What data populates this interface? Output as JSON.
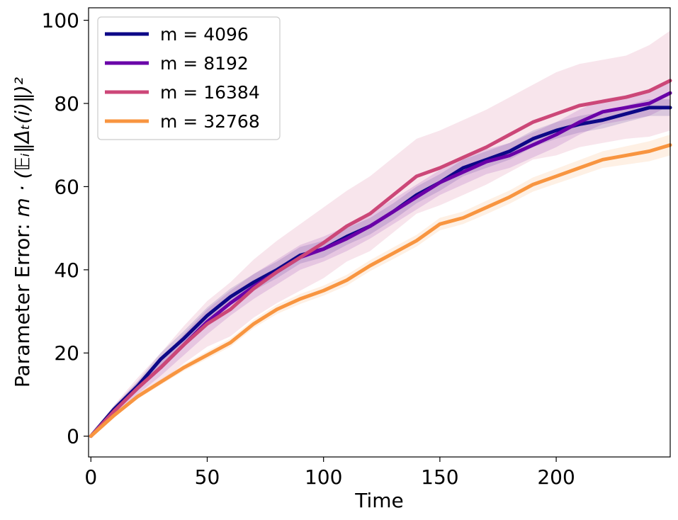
{
  "chart_data": {
    "type": "line",
    "title": "",
    "xlabel": "Time",
    "ylabel_prefix": "Parameter Error: ",
    "ylabel_math": "m · (𝔼ᵢ‖Δₜ(i)‖)²",
    "xlim": [
      -1,
      249
    ],
    "ylim": [
      -5,
      103
    ],
    "xticks": [
      0,
      50,
      100,
      150,
      200
    ],
    "yticks": [
      0,
      20,
      40,
      60,
      80,
      100
    ],
    "grid": false,
    "legend_position": "top-left",
    "x": [
      0,
      10,
      20,
      30,
      40,
      50,
      60,
      70,
      80,
      90,
      100,
      110,
      120,
      130,
      140,
      150,
      160,
      170,
      180,
      190,
      200,
      210,
      220,
      230,
      240,
      249
    ],
    "series": [
      {
        "name": "m = 4096",
        "color": "#0d0887",
        "values": [
          0,
          6.5,
          12,
          18.5,
          23.5,
          29,
          33.5,
          37,
          40,
          43.5,
          45,
          48,
          50.5,
          54,
          58,
          61,
          64.5,
          66.5,
          68.5,
          71.5,
          73.5,
          75,
          76,
          77.5,
          79,
          79
        ],
        "band": [
          0.5,
          0.8,
          1.2,
          1.5,
          1.8,
          2,
          2,
          2,
          2,
          2,
          2,
          2,
          2,
          2,
          2,
          2,
          2,
          2,
          2,
          2,
          2,
          2,
          2,
          2,
          2,
          2
        ]
      },
      {
        "name": "m = 8192",
        "color": "#6a00a8",
        "values": [
          0,
          6,
          11.5,
          16.5,
          22,
          27.5,
          32,
          36,
          39.5,
          43,
          45,
          47.5,
          50.5,
          54,
          57.5,
          61,
          63.5,
          66,
          67.5,
          70,
          72.5,
          75.5,
          78,
          79,
          80,
          82.5
        ],
        "band": [
          0.5,
          1,
          1.5,
          2,
          2.5,
          3,
          3,
          3,
          3,
          3,
          3,
          3,
          3,
          3,
          3,
          3,
          3,
          3,
          3,
          3,
          3,
          3,
          3,
          3,
          3,
          3
        ]
      },
      {
        "name": "m = 16384",
        "color": "#cc4778",
        "values": [
          0,
          6,
          11.5,
          16.5,
          22,
          27,
          30.5,
          35.5,
          39.5,
          43,
          46.5,
          50.5,
          53.5,
          58,
          62.5,
          64.5,
          67,
          69.5,
          72.5,
          75.5,
          77.5,
          79.5,
          80.5,
          81.5,
          83,
          85.5
        ],
        "band": [
          0.5,
          1.5,
          2.5,
          3.5,
          4.5,
          5.5,
          6.5,
          7,
          7.5,
          8,
          8.5,
          8.5,
          9,
          9,
          9,
          9,
          9,
          9,
          9,
          9,
          10,
          10,
          10,
          10,
          11,
          12
        ]
      },
      {
        "name": "m = 32768",
        "color": "#f89540",
        "values": [
          0,
          5,
          9.5,
          13,
          16.5,
          19.5,
          22.5,
          27,
          30.5,
          33,
          35,
          37.5,
          41,
          44,
          47,
          51,
          52.5,
          55,
          57.5,
          60.5,
          62.5,
          64.5,
          66.5,
          67.5,
          68.5,
          70
        ],
        "band": [
          0.3,
          0.5,
          0.6,
          0.7,
          0.8,
          0.9,
          1,
          1,
          1.1,
          1.2,
          1.2,
          1.3,
          1.3,
          1.4,
          1.4,
          1.5,
          1.5,
          1.6,
          1.6,
          1.7,
          1.8,
          1.9,
          2,
          2.2,
          2.4,
          2.5
        ]
      }
    ]
  }
}
